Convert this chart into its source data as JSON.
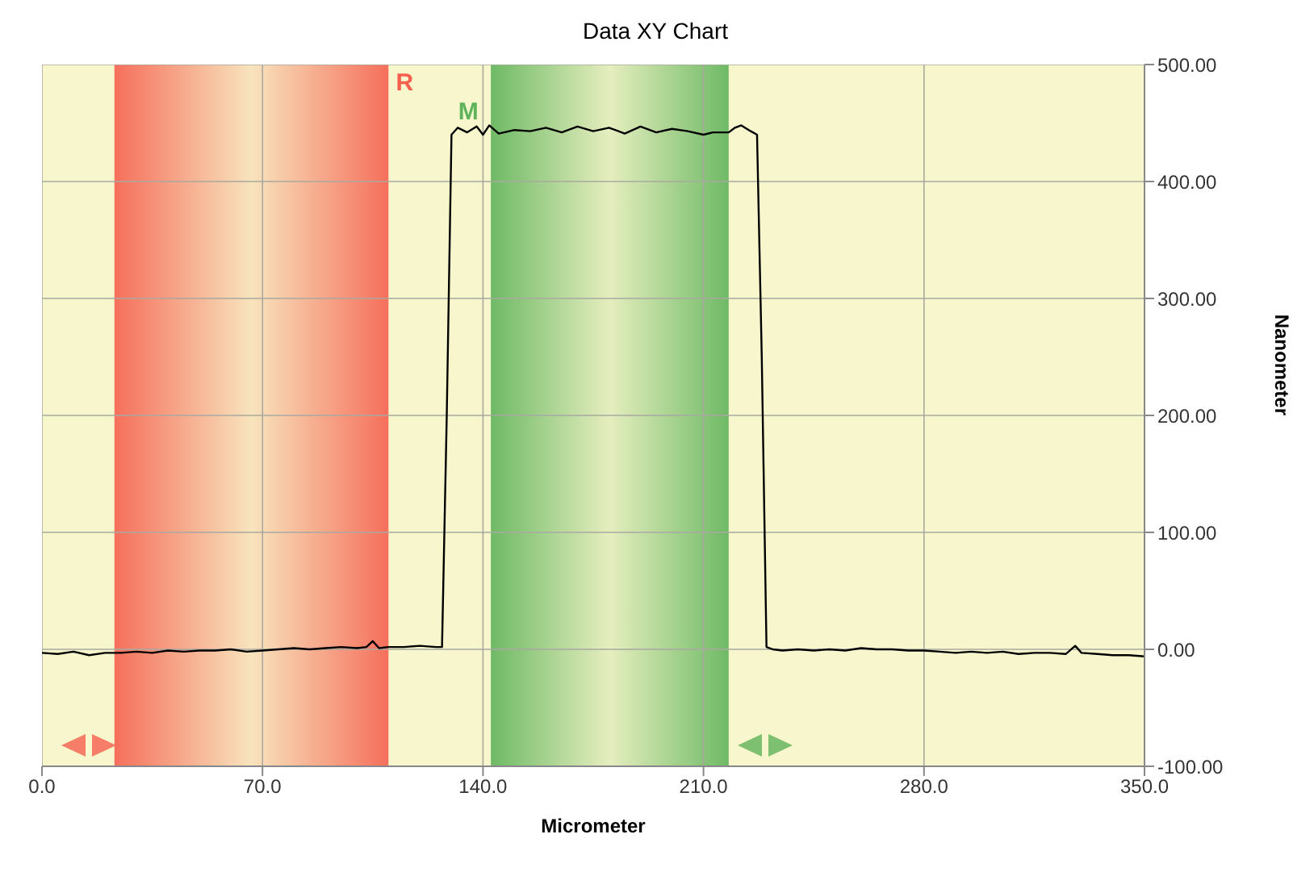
{
  "chart_data": {
    "type": "line",
    "title": "Data XY Chart",
    "xlabel": "Micrometer",
    "ylabel": "Nanometer",
    "xlim": [
      0,
      350
    ],
    "xticks": [
      {
        "value": 0,
        "label": "0.0"
      },
      {
        "value": 70,
        "label": "70.0"
      },
      {
        "value": 140,
        "label": "140.0"
      },
      {
        "value": 210,
        "label": "210.0"
      },
      {
        "value": 280,
        "label": "280.0"
      },
      {
        "value": 350,
        "label": "350.0"
      }
    ],
    "ylim": [
      -100,
      500
    ],
    "yticks": [
      {
        "value": -100,
        "label": "-100.00"
      },
      {
        "value": 0,
        "label": "0.00"
      },
      {
        "value": 100,
        "label": "100.00"
      },
      {
        "value": 200,
        "label": "200.00"
      },
      {
        "value": 300,
        "label": "300.00"
      },
      {
        "value": 400,
        "label": "400.00"
      },
      {
        "value": 500,
        "label": "500.00"
      }
    ],
    "grid": true,
    "marker": "none",
    "line_style": "solid",
    "bands": [
      {
        "axis": "x",
        "from": 23,
        "to": 110,
        "label": "R",
        "color": "#f5604f"
      },
      {
        "axis": "x",
        "from": 142.5,
        "to": 218,
        "label": "M",
        "color": "#5fb35a"
      }
    ],
    "x": [
      0,
      5,
      10,
      15,
      20,
      25,
      30,
      35,
      40,
      45,
      50,
      55,
      60,
      65,
      70,
      75,
      80,
      85,
      90,
      95,
      100,
      103,
      105,
      107,
      110,
      115,
      120,
      125,
      127,
      128.5,
      130,
      132,
      135,
      138,
      140,
      142,
      145,
      150,
      155,
      160,
      165,
      170,
      175,
      180,
      185,
      190,
      195,
      200,
      205,
      210,
      213,
      218,
      220,
      222,
      225,
      227,
      228.5,
      230,
      232,
      235,
      240,
      245,
      250,
      255,
      260,
      265,
      270,
      275,
      280,
      285,
      290,
      295,
      300,
      305,
      310,
      315,
      320,
      325,
      328,
      330,
      335,
      340,
      345,
      350
    ],
    "series": [
      {
        "color": "#000000",
        "values": [
          -3,
          -4,
          -2,
          -5,
          -3,
          -3,
          -2,
          -3,
          -1,
          -2,
          -1,
          -1,
          0,
          -2,
          -1,
          0,
          1,
          0,
          1,
          2,
          1,
          2,
          7,
          1,
          2,
          2,
          3,
          2,
          2,
          200,
          440,
          446,
          442,
          447,
          440,
          448,
          441,
          444,
          443,
          446,
          442,
          447,
          443,
          446,
          441,
          447,
          442,
          445,
          443,
          440,
          442,
          442,
          446,
          448,
          443,
          440,
          250,
          2,
          0,
          -1,
          0,
          -1,
          0,
          -1,
          1,
          0,
          0,
          -1,
          -1,
          -2,
          -3,
          -2,
          -3,
          -2,
          -4,
          -3,
          -3,
          -4,
          3,
          -3,
          -4,
          -5,
          -5,
          -6
        ]
      }
    ]
  }
}
